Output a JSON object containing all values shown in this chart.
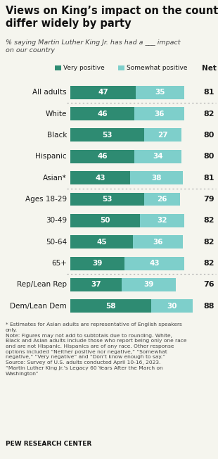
{
  "title": "Views on King’s impact on the country\ndiffer widely by party",
  "subtitle": "% saying Martin Luther King Jr. has had a ___ impact\non our country",
  "categories": [
    "All adults",
    "White",
    "Black",
    "Hispanic",
    "Asian*",
    "Ages 18-29",
    "30-49",
    "50-64",
    "65+",
    "Rep/Lean Rep",
    "Dem/Lean Dem"
  ],
  "very_positive": [
    47,
    46,
    53,
    46,
    43,
    53,
    50,
    45,
    39,
    37,
    58
  ],
  "somewhat_positive": [
    35,
    36,
    27,
    34,
    38,
    26,
    32,
    36,
    43,
    39,
    30
  ],
  "net": [
    81,
    82,
    80,
    80,
    81,
    79,
    82,
    82,
    82,
    76,
    88
  ],
  "color_very": "#2e8b72",
  "color_somewhat": "#7ecfcb",
  "bg_color": "#f5f5ee",
  "separator_after": [
    0,
    4,
    8
  ],
  "footnote_star": "* Estimates for Asian adults are representative of English speakers\nonly.",
  "footnote_note": "Note: Figures may not add to subtotals due to rounding. White,\nBlack and Asian adults include those who report being only one race\nand are not Hispanic. Hispanics are of any race. Other response\noptions included “Neither positive nor negative,” “Somewhat\nnegative,” “Very negative” and “Don’t know enough to say.”\nSource: Survey of U.S. adults conducted April 10-16, 2023.\n“Martin Luther King Jr.’s Legacy 60 Years After the March on\nWashington”",
  "source": "PEW RESEARCH CENTER",
  "bar_scale": 90
}
